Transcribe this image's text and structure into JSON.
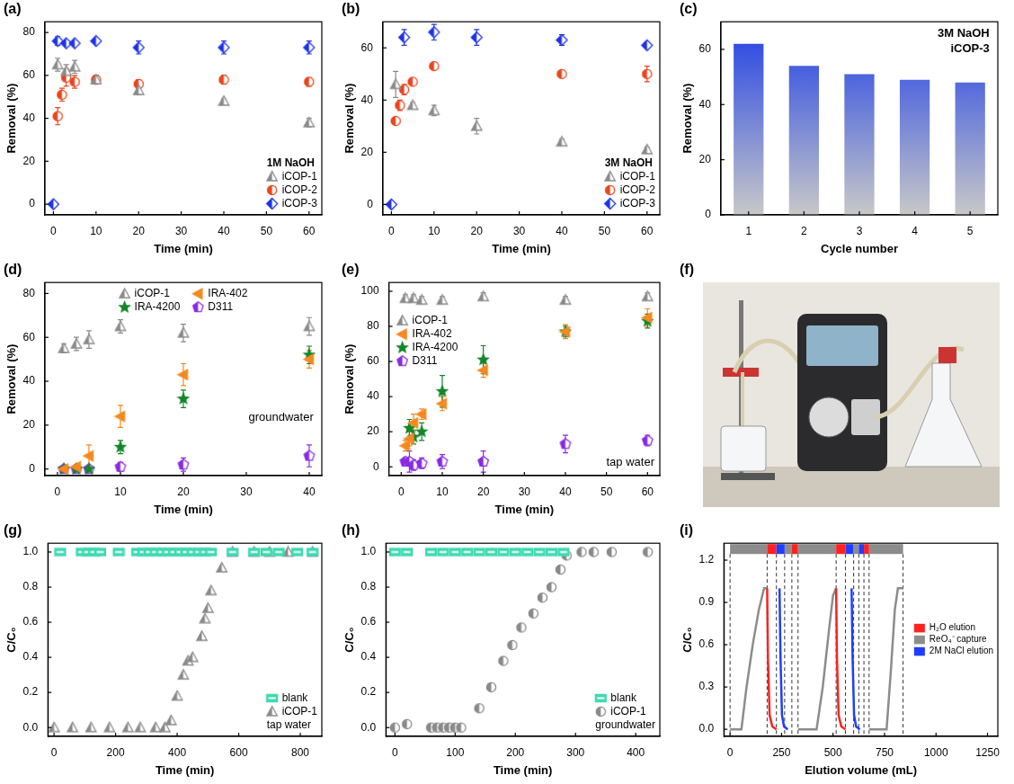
{
  "chart_data": [
    {
      "panel_label": "(a)",
      "type": "scatter",
      "x_label": "Time (min)",
      "y_label": "Removal (%)",
      "xlim": [
        -2,
        63
      ],
      "xticks": [
        0,
        10,
        20,
        30,
        40,
        50,
        60
      ],
      "ylim": [
        -5,
        85
      ],
      "yticks": [
        0,
        20,
        40,
        60,
        80
      ],
      "grid": false,
      "legend": "lower right",
      "annotations": [
        "1M NaOH"
      ],
      "series": [
        {
          "name": "iCOP-1",
          "color": "#8a8a8a",
          "marker": "triangle",
          "x": [
            1,
            3,
            5,
            10,
            20,
            40,
            60
          ],
          "values": [
            65,
            62,
            64,
            58,
            53,
            48,
            38
          ],
          "errors": [
            3,
            3,
            3,
            2,
            2,
            1,
            2
          ]
        },
        {
          "name": "iCOP-2",
          "color": "#e8461e",
          "marker": "half_circle",
          "x": [
            1,
            2,
            3,
            5,
            10,
            20,
            40,
            60
          ],
          "values": [
            41,
            51,
            59,
            57,
            58,
            56,
            58,
            57
          ],
          "errors": [
            4,
            3,
            4,
            3,
            2,
            2,
            2,
            2
          ]
        },
        {
          "name": "iCOP-3",
          "color": "#1f33e6",
          "marker": "diamond",
          "x": [
            0,
            1,
            3,
            5,
            10,
            20,
            40,
            60
          ],
          "values": [
            0,
            76,
            75,
            75,
            76,
            73,
            73,
            73
          ],
          "errors": [
            1,
            2,
            1,
            1,
            1,
            3,
            3,
            3
          ]
        }
      ]
    },
    {
      "panel_label": "(b)",
      "type": "scatter",
      "x_label": "Time (min)",
      "y_label": "Removal (%)",
      "xlim": [
        -2,
        63
      ],
      "xticks": [
        0,
        10,
        20,
        30,
        40,
        50,
        60
      ],
      "ylim": [
        -4,
        70
      ],
      "yticks": [
        0,
        20,
        40,
        60
      ],
      "grid": false,
      "legend": "lower right",
      "annotations": [
        "3M NaOH"
      ],
      "series": [
        {
          "name": "iCOP-1",
          "color": "#8a8a8a",
          "marker": "triangle",
          "x": [
            1,
            5,
            10,
            20,
            40,
            60
          ],
          "values": [
            46,
            38,
            36,
            30,
            24,
            21
          ],
          "errors": [
            5,
            1,
            2,
            3,
            1,
            1
          ]
        },
        {
          "name": "iCOP-2",
          "color": "#e8461e",
          "marker": "half_circle",
          "x": [
            1,
            2,
            3,
            5,
            10,
            40,
            60
          ],
          "values": [
            32,
            38,
            44,
            47,
            53,
            50,
            50
          ],
          "errors": [
            1,
            2,
            2,
            1,
            1,
            1,
            3
          ]
        },
        {
          "name": "iCOP-3",
          "color": "#1f33e6",
          "marker": "diamond",
          "x": [
            0,
            3,
            10,
            20,
            40,
            60
          ],
          "values": [
            0,
            64,
            66,
            64,
            63,
            61
          ],
          "errors": [
            1,
            3,
            3,
            3,
            2,
            1
          ]
        }
      ]
    },
    {
      "panel_label": "(c)",
      "type": "bar",
      "x_label": "Cycle number",
      "y_label": "Removal (%)",
      "categories": [
        "1",
        "2",
        "3",
        "4",
        "5"
      ],
      "values": [
        62,
        54,
        51,
        49,
        48
      ],
      "color": "#1f3fe6",
      "ylim": [
        0,
        70
      ],
      "yticks": [
        0,
        20,
        40,
        60
      ],
      "grid": false,
      "annotations": [
        "3M NaOH",
        "iCOP-3"
      ]
    },
    {
      "panel_label": "(d)",
      "type": "scatter",
      "x_label": "Time (min)",
      "y_label": "Removal (%)",
      "xlim": [
        -2,
        42
      ],
      "xticks": [
        0,
        10,
        20,
        30,
        40
      ],
      "ylim": [
        -3,
        85
      ],
      "yticks": [
        0,
        20,
        40,
        60,
        80
      ],
      "grid": false,
      "legend": "top",
      "annotations": [
        "groundwater"
      ],
      "series": [
        {
          "name": "iCOP-1",
          "color": "#8a8a8a",
          "marker": "triangle",
          "x": [
            1,
            3,
            5,
            10,
            20,
            40
          ],
          "values": [
            55,
            57,
            59,
            65,
            62,
            65
          ],
          "errors": [
            2,
            3,
            4,
            3,
            4,
            4
          ]
        },
        {
          "name": "IRA-402",
          "color": "#f5891f",
          "marker": "left_triangle",
          "x": [
            1,
            3,
            5,
            10,
            20,
            40
          ],
          "values": [
            0,
            1,
            6,
            24,
            43,
            50
          ],
          "errors": [
            1,
            1,
            5,
            5,
            5,
            4
          ]
        },
        {
          "name": "IRA-4200",
          "color": "#13862b",
          "marker": "star",
          "x": [
            1,
            3,
            5,
            10,
            20,
            40
          ],
          "values": [
            0,
            0,
            0,
            10,
            32,
            52
          ],
          "errors": [
            0,
            0,
            1,
            3,
            4,
            4
          ]
        },
        {
          "name": "D311",
          "color": "#8a2be2",
          "marker": "pentagon",
          "x": [
            1,
            3,
            5,
            10,
            20,
            40
          ],
          "values": [
            0,
            0,
            0,
            1,
            2,
            6
          ],
          "errors": [
            1,
            1,
            1,
            2,
            3,
            5
          ]
        }
      ]
    },
    {
      "panel_label": "(e)",
      "type": "scatter",
      "x_label": "Time (min)",
      "y_label": "Removal (%)",
      "xlim": [
        -3,
        63
      ],
      "xticks": [
        0,
        10,
        20,
        30,
        40,
        50,
        60
      ],
      "ylim": [
        -5,
        105
      ],
      "yticks": [
        0,
        20,
        40,
        60,
        80,
        100
      ],
      "grid": false,
      "legend": "upper left",
      "annotations": [
        "tap water"
      ],
      "series": [
        {
          "name": "iCOP-1",
          "color": "#8a8a8a",
          "marker": "triangle",
          "x": [
            1,
            3,
            5,
            10,
            20,
            40,
            60
          ],
          "values": [
            96,
            96,
            95,
            95,
            97,
            95,
            97
          ],
          "errors": [
            2,
            2,
            2,
            2,
            2,
            2,
            2
          ]
        },
        {
          "name": "IRA-402",
          "color": "#f5891f",
          "marker": "left_triangle",
          "x": [
            1,
            2,
            3,
            5,
            10,
            20,
            40,
            60
          ],
          "values": [
            12,
            16,
            25,
            30,
            36,
            55,
            77,
            85
          ],
          "errors": [
            3,
            4,
            5,
            3,
            4,
            4,
            4,
            5
          ]
        },
        {
          "name": "IRA-4200",
          "color": "#13862b",
          "marker": "star",
          "x": [
            2,
            3,
            5,
            10,
            20,
            40,
            60
          ],
          "values": [
            22,
            17,
            20,
            43,
            61,
            77,
            83
          ],
          "errors": [
            5,
            4,
            5,
            9,
            8,
            3,
            4
          ]
        },
        {
          "name": "D311",
          "color": "#8a2be2",
          "marker": "pentagon",
          "x": [
            1,
            2,
            3,
            5,
            10,
            20,
            40,
            60
          ],
          "values": [
            3,
            3,
            1,
            2,
            3,
            3,
            13,
            15
          ],
          "errors": [
            2,
            6,
            3,
            3,
            4,
            6,
            5,
            3
          ]
        }
      ]
    },
    {
      "panel_label": "(f)",
      "type": "photo"
    },
    {
      "panel_label": "(g)",
      "type": "scatter",
      "x_label": "Time (min)",
      "y_label": "C/C₀",
      "xlim": [
        -20,
        870
      ],
      "xticks": [
        0,
        200,
        400,
        600,
        800
      ],
      "ylim": [
        -0.05,
        1.05
      ],
      "yticks": [
        {
          "value": 0,
          "label": "0.0"
        },
        0.2,
        0.4,
        0.6,
        0.8,
        {
          "value": 1,
          "label": "1.0"
        }
      ],
      "grid": false,
      "legend": "lower right",
      "annotations": [
        "tap water"
      ],
      "series": [
        {
          "name": "blank",
          "color": "#40d9b3",
          "marker": "square",
          "x": [
            20,
            90,
            110,
            130,
            150,
            210,
            270,
            290,
            310,
            330,
            350,
            370,
            390,
            410,
            430,
            450,
            470,
            490,
            510,
            580,
            650,
            690,
            730,
            790,
            840
          ],
          "values": [
            1,
            1,
            1,
            1,
            1,
            1,
            1,
            1,
            1,
            1,
            1,
            1,
            1,
            1,
            1,
            1,
            1,
            1,
            1,
            1,
            1,
            1,
            1,
            1,
            1
          ]
        },
        {
          "name": "iCOP-1",
          "color": "#8a8a8a",
          "marker": "triangle",
          "x": [
            0,
            60,
            120,
            180,
            240,
            280,
            330,
            360,
            380,
            400,
            420,
            435,
            450,
            480,
            490,
            500,
            510,
            545,
            580,
            650,
            700,
            760,
            840
          ],
          "values": [
            0,
            0,
            0,
            0,
            0,
            0,
            0,
            0,
            0.04,
            0.18,
            0.3,
            0.38,
            0.4,
            0.52,
            0.62,
            0.68,
            0.78,
            0.91,
            1,
            1,
            1,
            1,
            1
          ]
        }
      ]
    },
    {
      "panel_label": "(h)",
      "type": "scatter",
      "x_label": "Time (min)",
      "y_label": "C/C₀",
      "xlim": [
        -15,
        440
      ],
      "xticks": [
        0,
        100,
        200,
        300,
        400
      ],
      "ylim": [
        -0.05,
        1.05
      ],
      "yticks": [
        {
          "value": 0,
          "label": "0.0"
        },
        0.2,
        0.4,
        0.6,
        0.8,
        {
          "value": 1,
          "label": "1.0"
        }
      ],
      "grid": false,
      "legend": "lower right",
      "annotations": [
        "groundwater"
      ],
      "series": [
        {
          "name": "blank",
          "color": "#40d9b3",
          "marker": "square",
          "x": [
            0,
            20,
            60,
            80,
            100,
            120,
            140,
            160,
            180,
            200,
            220,
            240,
            260,
            280
          ],
          "values": [
            1,
            1,
            1,
            1,
            1,
            1,
            1,
            1,
            1,
            1,
            1,
            1,
            1,
            1
          ]
        },
        {
          "name": "iCOP-1",
          "color": "#8a8a8a",
          "marker": "half_circle",
          "x": [
            0,
            20,
            60,
            70,
            80,
            90,
            100,
            110,
            140,
            160,
            180,
            195,
            210,
            230,
            245,
            260,
            275,
            285,
            310,
            330,
            360,
            420
          ],
          "values": [
            0,
            0.02,
            0,
            0,
            0,
            0,
            0,
            0,
            0.11,
            0.23,
            0.38,
            0.47,
            0.57,
            0.65,
            0.74,
            0.8,
            0.9,
            0.98,
            1,
            1,
            1,
            1
          ]
        }
      ]
    },
    {
      "panel_label": "(i)",
      "type": "line",
      "x_label": "Elution volume (mL)",
      "y_label": "C/C₀",
      "xlim": [
        -30,
        1300
      ],
      "xticks": [
        0,
        250,
        500,
        750,
        1000,
        1250
      ],
      "ylim": [
        -0.05,
        1.32
      ],
      "yticks": [
        {
          "value": 0,
          "label": "0.0"
        },
        0.3,
        0.6,
        0.9,
        1.2
      ],
      "grid": false,
      "legend": "center right",
      "series": [
        {
          "name": "H₂O elution",
          "color": "#ff2020",
          "segments": [
            {
              "x": [
                180,
                184,
                192,
                205,
                225
              ],
              "values": [
                1,
                0.5,
                0.1,
                0.02,
                0
              ]
            },
            {
              "x": [
                515,
                519,
                527,
                540,
                560
              ],
              "values": [
                1,
                0.5,
                0.1,
                0.02,
                0
              ]
            }
          ]
        },
        {
          "name": "ReO₄⁻ capture",
          "color": "#8c8c8c",
          "segments": [
            {
              "x": [
                0,
                55,
                80,
                110,
                140,
                165,
                180
              ],
              "values": [
                0,
                0,
                0.3,
                0.6,
                0.85,
                1,
                1
              ]
            },
            {
              "x": [
                330,
                420,
                450,
                480,
                500,
                515
              ],
              "values": [
                0,
                0,
                0.3,
                0.7,
                0.95,
                1
              ]
            },
            {
              "x": [
                675,
                760,
                780,
                800,
                815,
                840
              ],
              "values": [
                0,
                0,
                0.4,
                0.85,
                1,
                1
              ]
            }
          ]
        },
        {
          "name": "2M NaCl elution",
          "color": "#1f3dff",
          "segments": [
            {
              "x": [
                240,
                245,
                252,
                262,
                280
              ],
              "values": [
                1,
                0.5,
                0.1,
                0.02,
                0
              ]
            },
            {
              "x": [
                590,
                595,
                602,
                612,
                630
              ],
              "values": [
                1,
                0.5,
                0.1,
                0.02,
                0
              ]
            }
          ]
        }
      ],
      "stages": [
        {
          "series": 1,
          "from": 0,
          "to": 180
        },
        {
          "series": 0,
          "from": 180,
          "to": 225
        },
        {
          "series": 2,
          "from": 225,
          "to": 265
        },
        {
          "series": 1,
          "from": 265,
          "to": 300
        },
        {
          "series": 0,
          "from": 300,
          "to": 330
        },
        {
          "series": 1,
          "from": 330,
          "to": 515
        },
        {
          "series": 0,
          "from": 515,
          "to": 560
        },
        {
          "series": 2,
          "from": 560,
          "to": 600
        },
        {
          "series": 1,
          "from": 600,
          "to": 625
        },
        {
          "series": 2,
          "from": 625,
          "to": 650
        },
        {
          "series": 0,
          "from": 650,
          "to": 675
        },
        {
          "series": 1,
          "from": 675,
          "to": 840
        }
      ]
    }
  ]
}
